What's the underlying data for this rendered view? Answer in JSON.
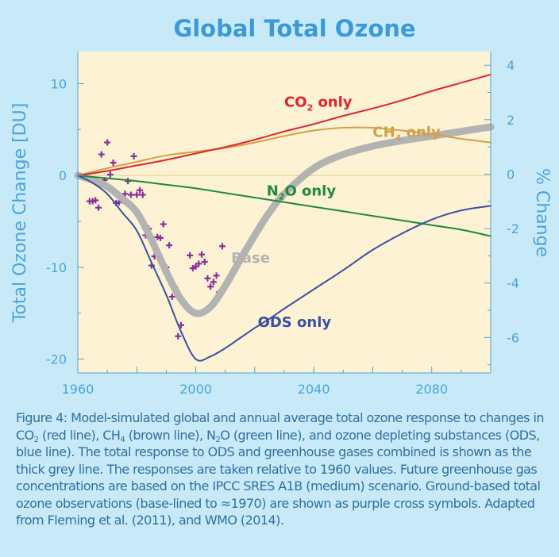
{
  "colors": {
    "background": "#c8eaf8",
    "plot_area": "#fdf3d4",
    "title": "#3b9ad6",
    "axis_text": "#4aa3d8",
    "caption": "#2f6f9f",
    "co2": "#e0242b",
    "ch4": "#d1a04a",
    "n2o": "#1e8a3a",
    "ods": "#3b4fa3",
    "base": "#b3b3b3",
    "observations": "#8a2f9c"
  },
  "chart_data": {
    "type": "line",
    "title": "Global Total Ozone",
    "ylabel": "Total Ozone Change [DU]",
    "ylabel_right": "% Change",
    "xlim": [
      1960,
      2100
    ],
    "ylim": [
      -21.5,
      13.5
    ],
    "y2lim": [
      -7.3,
      4.5
    ],
    "x_ticks": [
      "1960",
      "2000",
      "2040",
      "2080"
    ],
    "x_tick_values": [
      1960,
      2000,
      2040,
      2080
    ],
    "y_ticks": [
      "10",
      "0",
      "-10",
      "-20"
    ],
    "y_tick_values": [
      10,
      0,
      -10,
      -20
    ],
    "y2_ticks": [
      "4",
      "2",
      "0",
      "-2",
      "-4",
      "-6"
    ],
    "y2_tick_values": [
      4,
      2,
      0,
      -2,
      -4,
      -6
    ],
    "series": [
      {
        "name": "CO2 only",
        "label_main": "CO",
        "label_sub": "2",
        "label_tail": " only",
        "color": "#e0242b",
        "x": [
          1960,
          1970,
          1980,
          1990,
          2000,
          2010,
          2020,
          2030,
          2040,
          2050,
          2060,
          2070,
          2080,
          2090,
          2100
        ],
        "values": [
          0,
          0.5,
          1.1,
          1.7,
          2.4,
          3.1,
          3.9,
          4.8,
          5.6,
          6.5,
          7.3,
          8.2,
          9.2,
          10.1,
          11.0
        ]
      },
      {
        "name": "CH4 only",
        "label_main": "CH",
        "label_sub": "4",
        "label_tail": " only",
        "color": "#d1a04a",
        "x": [
          1960,
          1970,
          1980,
          1990,
          2000,
          2010,
          2020,
          2030,
          2040,
          2050,
          2060,
          2070,
          2080,
          2090,
          2100
        ],
        "values": [
          0,
          0.8,
          1.5,
          2.2,
          2.6,
          3.0,
          3.6,
          4.3,
          4.9,
          5.2,
          5.2,
          4.9,
          4.5,
          4.0,
          3.6
        ]
      },
      {
        "name": "N2O only",
        "label_main": "N",
        "label_sub": "2",
        "label_tail": "O only",
        "color": "#1e8a3a",
        "x": [
          1960,
          1970,
          1980,
          1990,
          2000,
          2010,
          2020,
          2030,
          2040,
          2050,
          2060,
          2070,
          2080,
          2090,
          2100
        ],
        "values": [
          0,
          -0.3,
          -0.6,
          -1.0,
          -1.4,
          -1.9,
          -2.4,
          -2.9,
          -3.4,
          -3.9,
          -4.4,
          -4.9,
          -5.4,
          -5.9,
          -6.6
        ]
      },
      {
        "name": "Base",
        "label_main": "Base",
        "label_sub": "",
        "label_tail": "",
        "color": "#b3b3b3",
        "x": [
          1960,
          1965,
          1970,
          1975,
          1980,
          1985,
          1990,
          1995,
          2000,
          2005,
          2010,
          2015,
          2020,
          2025,
          2030,
          2040,
          2050,
          2060,
          2070,
          2080,
          2090,
          2100
        ],
        "values": [
          0,
          -0.5,
          -1.2,
          -2.5,
          -4.0,
          -7.0,
          -10.5,
          -13.5,
          -15.0,
          -14.3,
          -12.0,
          -9.2,
          -6.5,
          -4.0,
          -2.0,
          0.8,
          2.3,
          3.2,
          3.8,
          4.3,
          4.8,
          5.3
        ]
      },
      {
        "name": "ODS only",
        "label_main": "ODS only",
        "label_sub": "",
        "label_tail": "",
        "color": "#3b4fa3",
        "x": [
          1960,
          1965,
          1970,
          1975,
          1980,
          1985,
          1990,
          1995,
          2000,
          2005,
          2010,
          2015,
          2020,
          2025,
          2030,
          2040,
          2050,
          2060,
          2070,
          2080,
          2090,
          2100
        ],
        "values": [
          0,
          -0.8,
          -2.0,
          -4.0,
          -6.0,
          -9.5,
          -13.0,
          -17.0,
          -20.0,
          -19.7,
          -18.8,
          -17.7,
          -16.6,
          -15.6,
          -14.5,
          -12.4,
          -10.3,
          -8.1,
          -6.3,
          -4.8,
          -3.8,
          -3.3
        ]
      }
    ],
    "observations": {
      "name": "Ground-based observations",
      "marker": "+",
      "x": [
        1964,
        1965,
        1966,
        1967,
        1968,
        1969,
        1970,
        1971,
        1972,
        1973,
        1974,
        1975,
        1976,
        1977,
        1978,
        1979,
        1980,
        1981,
        1982,
        1983,
        1984,
        1985,
        1986,
        1987,
        1988,
        1989,
        1990,
        1991,
        1992,
        1993,
        1994,
        1995,
        1996,
        1997,
        1998,
        1999,
        2000,
        2001,
        2002,
        2003,
        2004,
        2005,
        2006,
        2007,
        2008,
        2009
      ],
      "values": [
        -2.8,
        -2.8,
        -2.7,
        -3.5,
        2.3,
        -0.5,
        3.6,
        0.1,
        1.4,
        -3.0,
        -2.9,
        -2.7,
        -2.0,
        -0.6,
        -2.1,
        2.1,
        -2.1,
        -1.6,
        -2.1,
        -6.5,
        -5.8,
        -9.8,
        -8.8,
        -6.7,
        -6.8,
        -5.3,
        -10.0,
        -7.6,
        -13.2,
        -12.2,
        -17.5,
        -16.3,
        -13.8,
        -14.2,
        -8.7,
        -10.1,
        -9.9,
        -9.6,
        -8.6,
        -9.4,
        -11.2,
        -12.1,
        -11.6,
        -10.9,
        -12.7,
        -7.7
      ]
    },
    "zero_line": true,
    "grid": false,
    "legend": "inline labels"
  },
  "caption": {
    "segments": [
      {
        "t": "Figure 4: Model-simulated global and annual average total ozone response to changes in CO"
      },
      {
        "sub": "2"
      },
      {
        "t": " (red line), CH"
      },
      {
        "sub": "4"
      },
      {
        "t": " (brown line), N"
      },
      {
        "sub": "2"
      },
      {
        "t": "O (green line), and ozone depleting substances (ODS, blue line). The total response to ODS and greenhouse gases combined is shown as the thick grey line. The responses are taken relative to 1960 values. Future greenhouse gas concentrations are based on the IPCC SRES A1B (medium) scenario. Ground-based total ozone observations (base-lined to ≈1970) are shown as purple cross symbols. Adapted from Fleming et al. (2011), and WMO (2014)."
      }
    ]
  }
}
